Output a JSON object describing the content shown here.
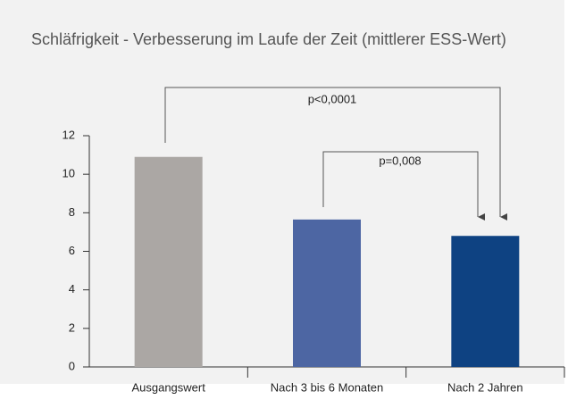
{
  "chart_data": {
    "type": "bar",
    "title": "Schläfrigkeit - Verbesserung im Laufe der Zeit (mittlerer ESS-Wert)",
    "categories": [
      "Ausgangswert",
      "Nach 3 bis 6 Monaten",
      "Nach 2 Jahren"
    ],
    "values": [
      10.9,
      7.65,
      6.8
    ],
    "colors": [
      "#aba7a4",
      "#4d66a3",
      "#0e4282"
    ],
    "ylim": [
      0,
      12
    ],
    "yticks": [
      0,
      2,
      4,
      6,
      8,
      10,
      12
    ],
    "annotations": [
      "p<0,0001",
      "p=0,008"
    ]
  }
}
